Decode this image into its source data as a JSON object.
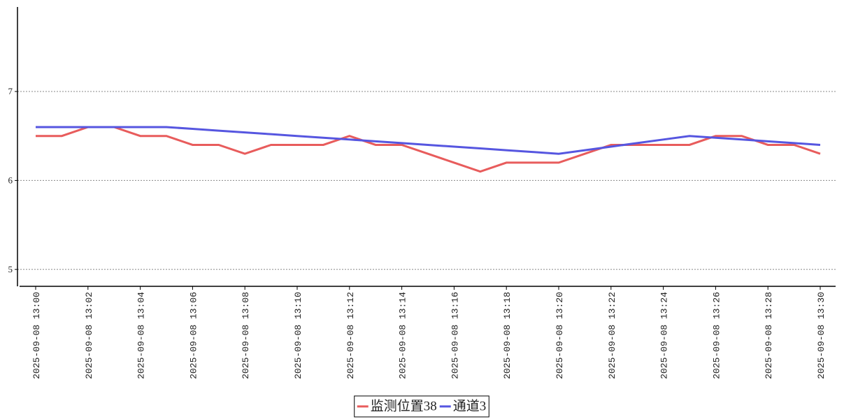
{
  "chart_data": {
    "type": "line",
    "categories": [
      "2025-09-08 13:00",
      null,
      "2025-09-08 13:02",
      null,
      "2025-09-08 13:04",
      null,
      "2025-09-08 13:06",
      null,
      "2025-09-08 13:08",
      null,
      "2025-09-08 13:10",
      null,
      "2025-09-08 13:12",
      null,
      "2025-09-08 13:14",
      null,
      "2025-09-08 13:16",
      null,
      "2025-09-08 13:18",
      null,
      "2025-09-08 13:20",
      null,
      "2025-09-08 13:22",
      null,
      "2025-09-08 13:24",
      null,
      "2025-09-08 13:26",
      null,
      "2025-09-08 13:28",
      null,
      "2025-09-08 13:30"
    ],
    "series": [
      {
        "name": "监测位置38",
        "color": "#e85c5c",
        "values": [
          6.5,
          6.5,
          6.6,
          6.6,
          6.5,
          6.5,
          6.4,
          6.4,
          6.3,
          6.4,
          6.4,
          6.4,
          6.5,
          6.4,
          6.4,
          6.3,
          6.2,
          6.1,
          6.2,
          6.2,
          6.2,
          6.3,
          6.4,
          6.4,
          6.4,
          6.4,
          6.5,
          6.5,
          6.4,
          6.4,
          6.3
        ]
      },
      {
        "name": "通道3",
        "color": "#5656e0",
        "values": [
          6.6,
          6.6,
          6.6,
          6.6,
          6.6,
          6.6,
          6.58,
          6.56,
          6.54,
          6.52,
          6.5,
          6.48,
          6.46,
          6.44,
          6.42,
          6.4,
          6.38,
          6.36,
          6.34,
          6.32,
          6.3,
          6.34,
          6.38,
          6.42,
          6.46,
          6.5,
          6.48,
          6.46,
          6.44,
          6.42,
          6.4
        ]
      }
    ],
    "ylim": [
      4.81,
      7.95
    ],
    "yticks": [
      5,
      6,
      7
    ],
    "grid": true
  }
}
